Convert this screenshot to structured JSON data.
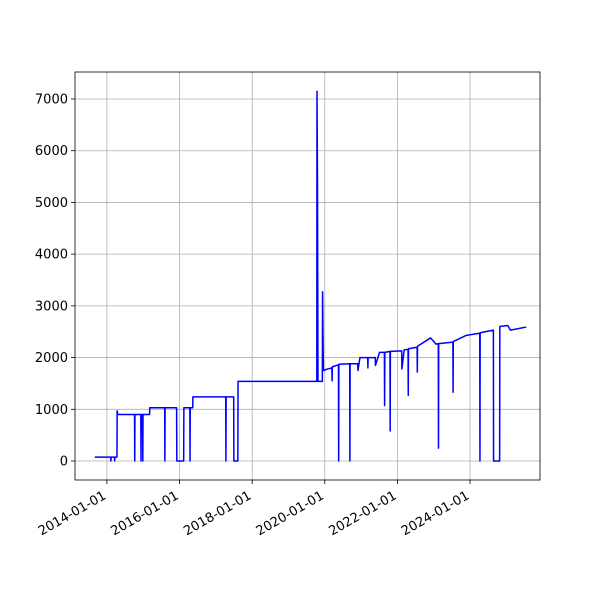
{
  "chart_data": {
    "type": "line",
    "x": [
      "2013-09-01",
      "2014-02-08",
      "2014-02-10",
      "2014-02-12",
      "2014-03-18",
      "2014-03-20",
      "2014-03-22",
      "2014-04-12",
      "2014-04-14",
      "2014-04-20",
      "2014-10-06",
      "2014-10-08",
      "2014-10-10",
      "2014-12-08",
      "2014-12-10",
      "2014-12-12",
      "2014-12-26",
      "2014-12-28",
      "2014-12-30",
      "2015-03-06",
      "2015-03-08",
      "2015-08-05",
      "2015-08-07",
      "2015-08-09",
      "2015-12-03",
      "2015-12-05",
      "2016-02-12",
      "2016-02-14",
      "2016-04-14",
      "2016-04-16",
      "2016-04-18",
      "2016-05-13",
      "2016-05-15",
      "2017-04-10",
      "2017-04-12",
      "2017-04-14",
      "2017-06-29",
      "2017-07-01",
      "2017-08-10",
      "2017-08-12",
      "2019-10-13",
      "2019-10-15",
      "2019-10-20",
      "2019-10-25",
      "2019-12-08",
      "2019-12-10",
      "2019-12-18",
      "2020-02-01",
      "2020-03-13",
      "2020-03-15",
      "2020-03-17",
      "2020-05-18",
      "2020-05-20",
      "2020-05-22",
      "2020-09-08",
      "2020-09-10",
      "2020-09-12",
      "2020-11-28",
      "2020-11-30",
      "2020-12-20",
      "2021-03-08",
      "2021-03-10",
      "2021-03-12",
      "2021-05-23",
      "2021-05-25",
      "2021-07-05",
      "2021-08-23",
      "2021-08-25",
      "2021-08-27",
      "2021-10-18",
      "2021-10-20",
      "2021-10-22",
      "2022-02-13",
      "2022-02-15",
      "2022-03-10",
      "2022-04-18",
      "2022-04-20",
      "2022-04-22",
      "2022-07-18",
      "2022-07-20",
      "2022-07-22",
      "2022-11-30",
      "2023-01-25",
      "2023-02-16",
      "2023-02-18",
      "2023-02-20",
      "2023-07-13",
      "2023-07-15",
      "2023-07-17",
      "2023-11-25",
      "2024-04-08",
      "2024-04-10",
      "2024-04-12",
      "2024-08-23",
      "2024-08-25",
      "2024-10-25",
      "2024-10-27",
      "2025-01-15",
      "2025-02-10",
      "2025-07-20"
    ],
    "values": [
      75,
      75,
      0,
      75,
      75,
      0,
      75,
      75,
      970,
      900,
      900,
      0,
      900,
      900,
      0,
      900,
      900,
      0,
      900,
      900,
      1030,
      1030,
      0,
      1030,
      1030,
      0,
      0,
      1030,
      1030,
      0,
      1030,
      1030,
      1240,
      1240,
      0,
      1240,
      1240,
      0,
      0,
      1540,
      1540,
      7150,
      5400,
      1540,
      1540,
      3270,
      1750,
      1780,
      1800,
      1550,
      1820,
      1860,
      0,
      1870,
      1880,
      0,
      1880,
      1880,
      1750,
      2000,
      2000,
      1800,
      2000,
      2000,
      1850,
      2100,
      2100,
      1070,
      2100,
      2120,
      580,
      2120,
      2130,
      1780,
      2150,
      2160,
      1270,
      2170,
      2200,
      1720,
      2220,
      2380,
      2260,
      2270,
      250,
      2270,
      2300,
      1330,
      2310,
      2430,
      2470,
      0,
      2480,
      2530,
      0,
      0,
      2600,
      2620,
      2530,
      2590
    ],
    "color": "#0000ff",
    "xlim": [
      "2013-02-14",
      "2025-12-05"
    ],
    "xticks": [
      "2014-01-01",
      "2016-01-01",
      "2018-01-01",
      "2020-01-01",
      "2022-01-01",
      "2024-01-01"
    ],
    "ylim": [
      -367,
      7522
    ],
    "yticks": [
      0,
      1000,
      2000,
      3000,
      4000,
      5000,
      6000,
      7000
    ],
    "grid": true
  }
}
